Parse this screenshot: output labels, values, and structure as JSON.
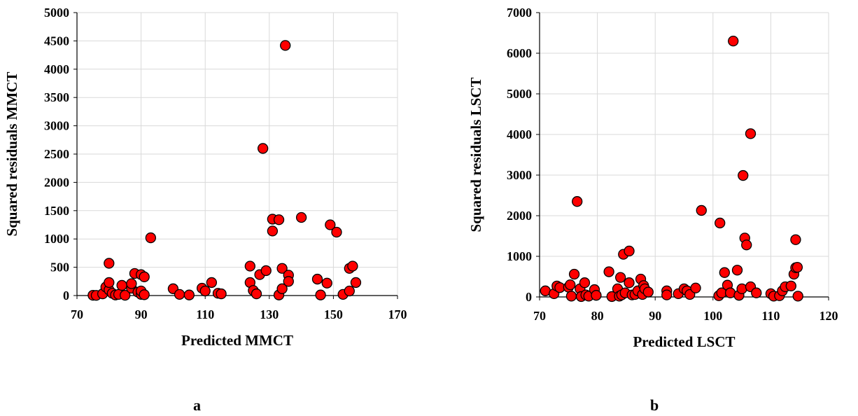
{
  "panels": [
    {
      "label": "a"
    },
    {
      "label": "b"
    }
  ],
  "chart_data": [
    {
      "type": "scatter",
      "title": "",
      "xlabel": "Predicted MMCT",
      "ylabel": "Squared residuals MMCT",
      "xlim": [
        70,
        170
      ],
      "ylim": [
        0,
        5000
      ],
      "xticks": [
        70,
        90,
        110,
        130,
        150,
        170
      ],
      "yticks": [
        0,
        500,
        1000,
        1500,
        2000,
        2500,
        3000,
        3500,
        4000,
        4500,
        5000
      ],
      "grid": true,
      "legend": "none",
      "marker_fill": "#ff0000",
      "marker_edge": "#000000",
      "points": [
        [
          75,
          5
        ],
        [
          76,
          3
        ],
        [
          78,
          30
        ],
        [
          79,
          150
        ],
        [
          80,
          100
        ],
        [
          80,
          230
        ],
        [
          80,
          570
        ],
        [
          81,
          40
        ],
        [
          82,
          10
        ],
        [
          83,
          20
        ],
        [
          84,
          180
        ],
        [
          85,
          5
        ],
        [
          87,
          130
        ],
        [
          87,
          210
        ],
        [
          88,
          390
        ],
        [
          89,
          60
        ],
        [
          90,
          20
        ],
        [
          90,
          80
        ],
        [
          90,
          370
        ],
        [
          91,
          330
        ],
        [
          91,
          15
        ],
        [
          93,
          1020
        ],
        [
          100,
          120
        ],
        [
          102,
          20
        ],
        [
          105,
          10
        ],
        [
          109,
          130
        ],
        [
          110,
          80
        ],
        [
          112,
          230
        ],
        [
          114,
          40
        ],
        [
          115,
          30
        ],
        [
          124,
          520
        ],
        [
          124,
          230
        ],
        [
          125,
          90
        ],
        [
          126,
          30
        ],
        [
          127,
          370
        ],
        [
          128,
          2600
        ],
        [
          129,
          440
        ],
        [
          131,
          1350
        ],
        [
          131,
          1140
        ],
        [
          133,
          1340
        ],
        [
          133,
          10
        ],
        [
          134,
          480
        ],
        [
          134,
          120
        ],
        [
          135,
          4420
        ],
        [
          136,
          360
        ],
        [
          136,
          250
        ],
        [
          140,
          1380
        ],
        [
          145,
          290
        ],
        [
          146,
          10
        ],
        [
          148,
          220
        ],
        [
          149,
          1250
        ],
        [
          151,
          1120
        ],
        [
          153,
          20
        ],
        [
          155,
          80
        ],
        [
          155,
          480
        ],
        [
          156,
          520
        ],
        [
          157,
          230
        ]
      ]
    },
    {
      "type": "scatter",
      "title": "",
      "xlabel": "Predicted LSCT",
      "ylabel": "Squared residuals LSCT",
      "xlim": [
        70,
        120
      ],
      "ylim": [
        0,
        7000
      ],
      "xticks": [
        70,
        80,
        90,
        100,
        110,
        120
      ],
      "yticks": [
        0,
        1000,
        2000,
        3000,
        4000,
        5000,
        6000,
        7000
      ],
      "grid": true,
      "legend": "none",
      "marker_fill": "#ff0000",
      "marker_edge": "#000000",
      "points": [
        [
          71,
          150
        ],
        [
          72.5,
          80
        ],
        [
          73,
          270
        ],
        [
          73.5,
          230
        ],
        [
          75,
          240
        ],
        [
          75.3,
          300
        ],
        [
          75.5,
          20
        ],
        [
          76,
          560
        ],
        [
          76.5,
          2350
        ],
        [
          77,
          200
        ],
        [
          77.2,
          10
        ],
        [
          77.8,
          350
        ],
        [
          78,
          50
        ],
        [
          78.5,
          20
        ],
        [
          79.5,
          180
        ],
        [
          79.8,
          40
        ],
        [
          82,
          620
        ],
        [
          82.5,
          10
        ],
        [
          83.5,
          200
        ],
        [
          83.8,
          20
        ],
        [
          84,
          480
        ],
        [
          84.2,
          50
        ],
        [
          84.5,
          1050
        ],
        [
          84.8,
          100
        ],
        [
          85.5,
          1130
        ],
        [
          85.5,
          350
        ],
        [
          86,
          50
        ],
        [
          86.5,
          60
        ],
        [
          87,
          150
        ],
        [
          87.5,
          440
        ],
        [
          87.8,
          60
        ],
        [
          88,
          280
        ],
        [
          88.2,
          200
        ],
        [
          88.8,
          120
        ],
        [
          92,
          150
        ],
        [
          92,
          50
        ],
        [
          94,
          80
        ],
        [
          95,
          200
        ],
        [
          95.5,
          150
        ],
        [
          96,
          60
        ],
        [
          97,
          220
        ],
        [
          98,
          2130
        ],
        [
          101,
          30
        ],
        [
          101.2,
          1820
        ],
        [
          101.5,
          100
        ],
        [
          102,
          600
        ],
        [
          102.5,
          290
        ],
        [
          103,
          100
        ],
        [
          103.5,
          6300
        ],
        [
          104.2,
          660
        ],
        [
          104.5,
          40
        ],
        [
          105,
          200
        ],
        [
          105.2,
          2990
        ],
        [
          105.5,
          1450
        ],
        [
          105.8,
          1280
        ],
        [
          106.5,
          4020
        ],
        [
          106.5,
          250
        ],
        [
          107.5,
          100
        ],
        [
          110,
          80
        ],
        [
          110.5,
          20
        ],
        [
          111.5,
          30
        ],
        [
          112,
          150
        ],
        [
          112.5,
          250
        ],
        [
          113.5,
          270
        ],
        [
          114,
          560
        ],
        [
          114.3,
          720
        ],
        [
          114.3,
          1410
        ],
        [
          114.6,
          730
        ],
        [
          114.7,
          20
        ]
      ]
    }
  ]
}
